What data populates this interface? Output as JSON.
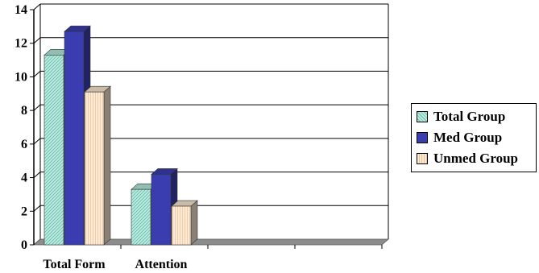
{
  "chart_data": {
    "type": "bar",
    "categories": [
      "Total Form",
      "Attention",
      "",
      ""
    ],
    "series": [
      {
        "name": "Total Group",
        "values": [
          11.3,
          3.3,
          null,
          null
        ],
        "color": "#b7ece0",
        "pattern": "diagonal-hatch"
      },
      {
        "name": "Med Group",
        "values": [
          12.7,
          4.2,
          null,
          null
        ],
        "color": "#3a3db0"
      },
      {
        "name": "Unmed Group",
        "values": [
          9.1,
          2.3,
          null,
          null
        ],
        "color": "#fde9d2",
        "pattern": "vertical-lines"
      }
    ],
    "title": "",
    "xlabel": "",
    "ylabel": "",
    "ylim": [
      0,
      14
    ],
    "yticks": [
      0,
      2,
      4,
      6,
      8,
      10,
      12,
      14
    ],
    "grid": true,
    "legend_position": "right",
    "style": "3d"
  }
}
